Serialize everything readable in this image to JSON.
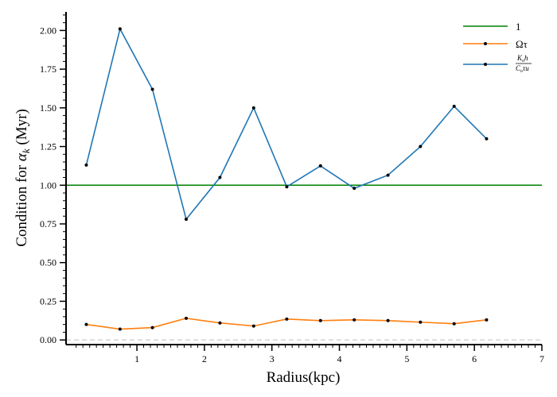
{
  "chart_data": {
    "type": "line",
    "xlabel": "Radius(kpc)",
    "ylabel_prefix": "Condition for ",
    "ylabel_symbol": "α",
    "ylabel_sub": "k",
    "ylabel_suffix": " (Myr)",
    "xlim": [
      -0.05,
      7.0
    ],
    "ylim": [
      -0.03,
      2.12
    ],
    "x_ticks": [
      1,
      2,
      3,
      4,
      5,
      6,
      7
    ],
    "y_ticks": [
      0.0,
      0.25,
      0.5,
      0.75,
      1.0,
      1.25,
      1.5,
      1.75,
      2.0
    ],
    "x_tick_labels": [
      "1",
      "2",
      "3",
      "4",
      "5",
      "6",
      "7"
    ],
    "y_tick_labels": [
      "0.00",
      "0.25",
      "0.50",
      "0.75",
      "1.00",
      "1.25",
      "1.50",
      "1.75",
      "2.00"
    ],
    "x_minor_step": 0.1,
    "y_minor_step": 0.05,
    "grid": false,
    "legend_position": "top-right",
    "reference_lines": [
      {
        "name": "1",
        "y": 1.0,
        "color": "#008000"
      },
      {
        "name": "",
        "y": 0.0,
        "color": "#cccccc",
        "style": "dashed"
      }
    ],
    "series": [
      {
        "name": "Ωτ",
        "color": "#ff7f0e",
        "x": [
          0.25,
          0.75,
          1.23,
          1.73,
          2.23,
          2.73,
          3.22,
          3.72,
          4.22,
          4.72,
          5.2,
          5.7,
          6.18
        ],
        "values": [
          0.1,
          0.07,
          0.08,
          0.14,
          0.11,
          0.09,
          0.135,
          0.125,
          0.13,
          0.125,
          0.115,
          0.105,
          0.13
        ]
      },
      {
        "name": "K_o h / C_o τ u",
        "legend_numerator": "K",
        "legend_numerator_sub": "o",
        "legend_numerator_rest": "h",
        "legend_denominator": "C",
        "legend_denominator_sub": "o",
        "legend_denominator_rest": "τu",
        "color": "#1f77b4",
        "x": [
          0.25,
          0.75,
          1.23,
          1.73,
          2.23,
          2.73,
          3.22,
          3.72,
          4.22,
          4.72,
          5.2,
          5.7,
          6.18
        ],
        "values": [
          1.13,
          2.01,
          1.62,
          0.78,
          1.05,
          1.5,
          0.99,
          1.125,
          0.98,
          1.065,
          1.25,
          1.51,
          1.3
        ]
      }
    ]
  }
}
